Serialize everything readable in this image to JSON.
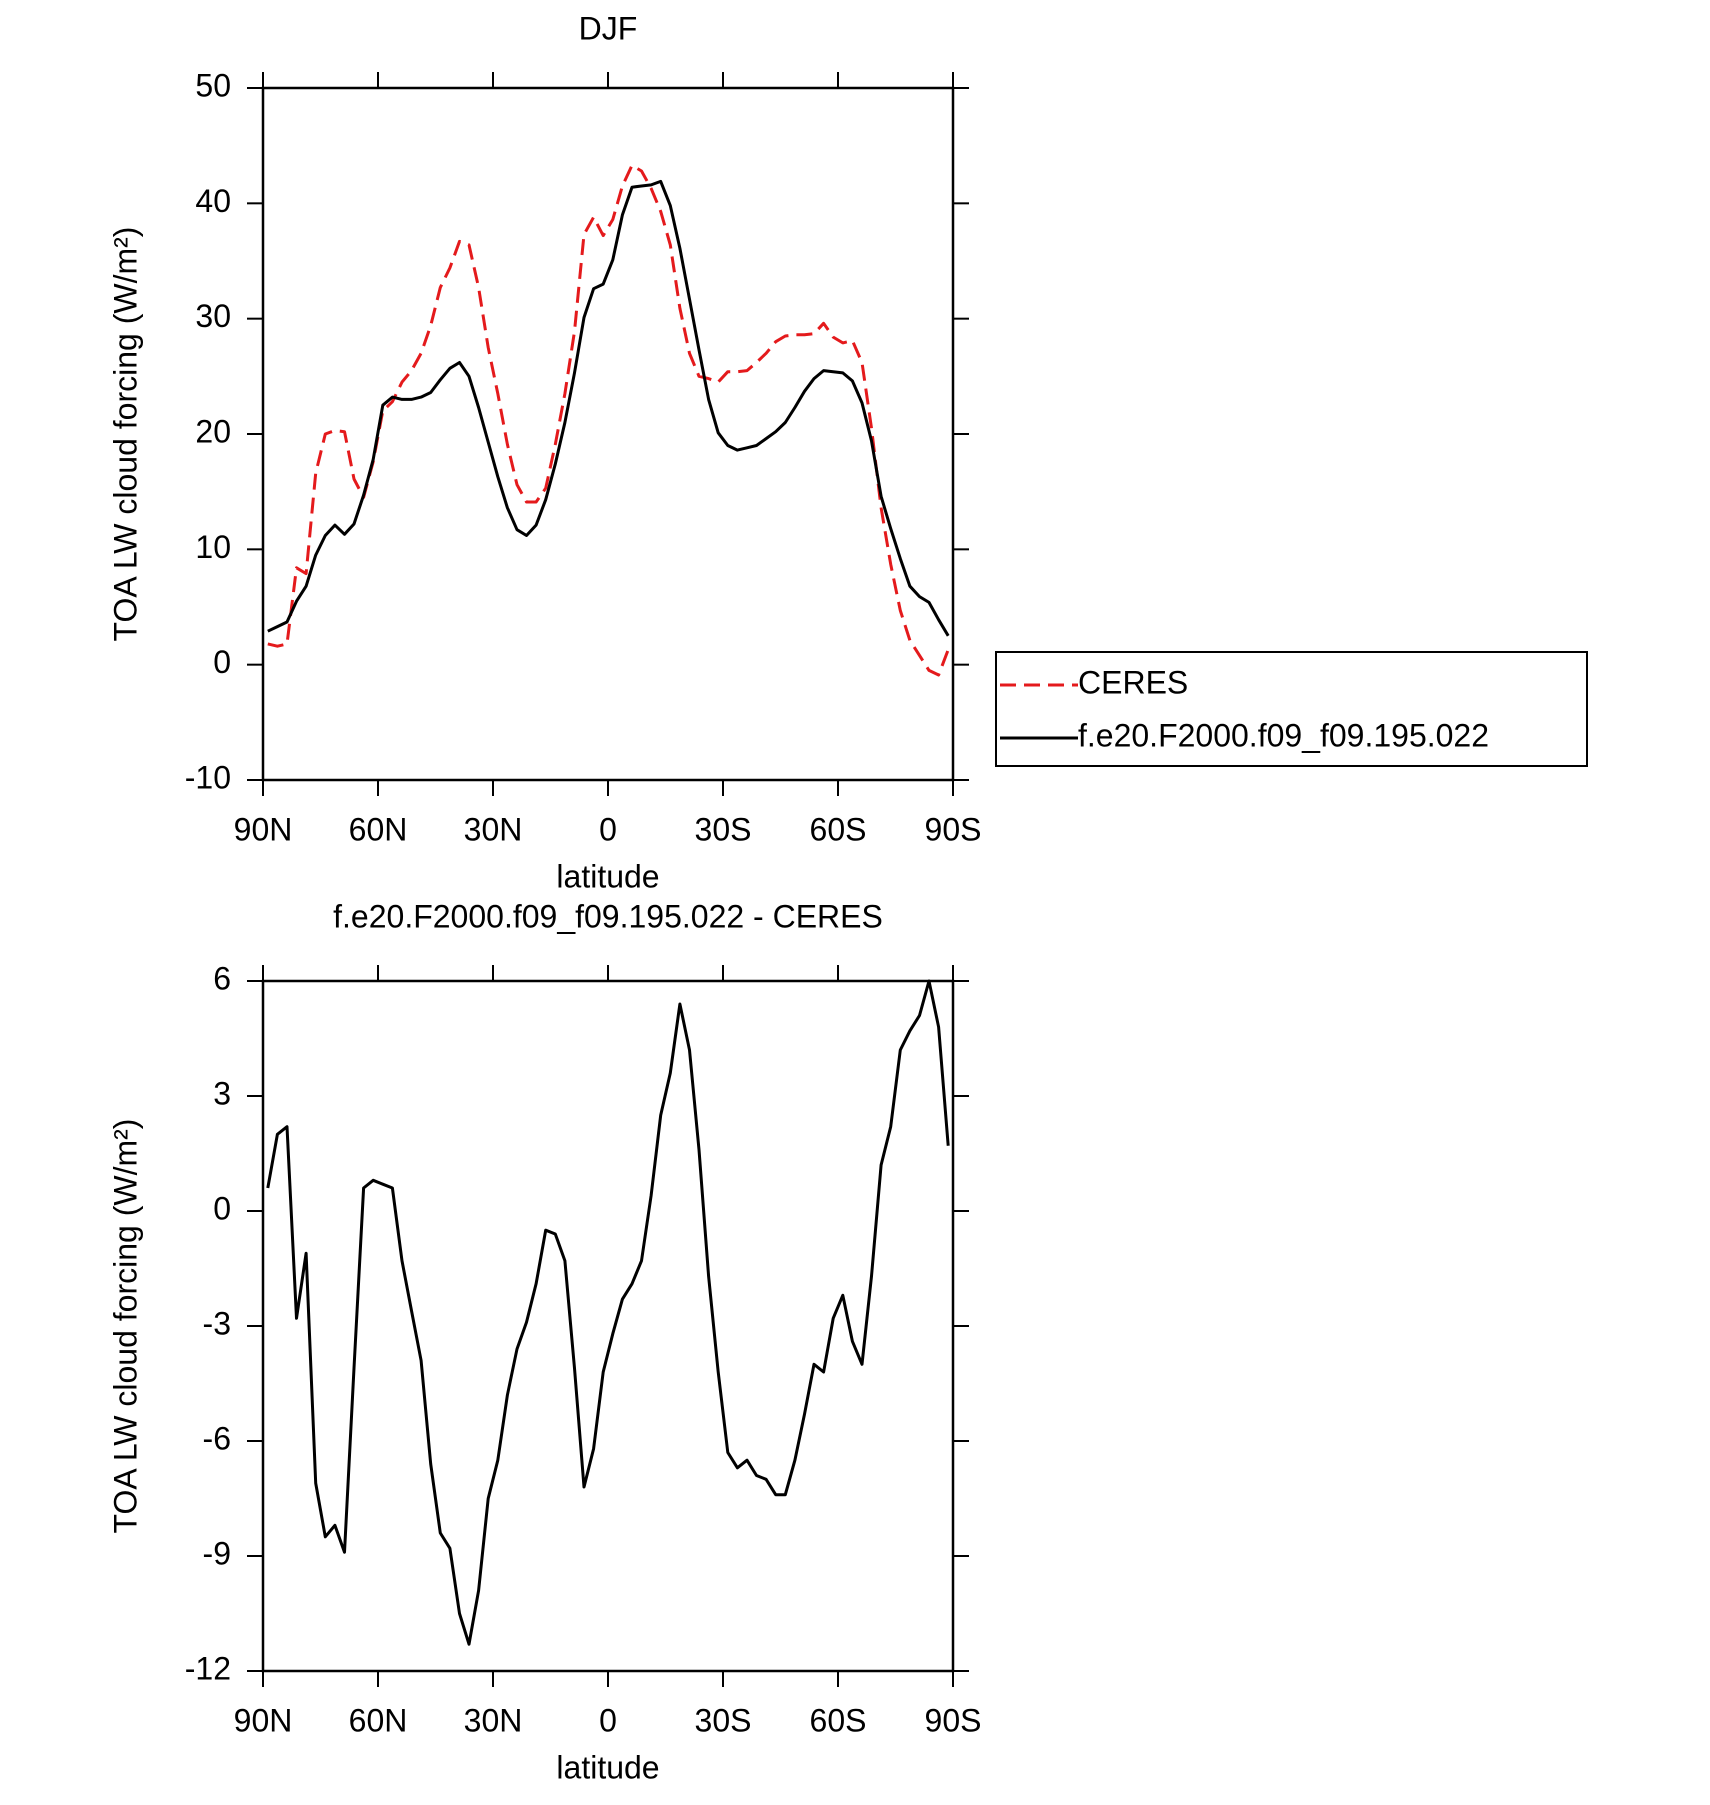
{
  "chart_data": [
    {
      "type": "line",
      "title": "DJF",
      "xlabel": "latitude",
      "ylabel": "TOA LW cloud forcing (W/m²)",
      "x": [
        88.75,
        86.25,
        83.75,
        81.25,
        78.75,
        76.25,
        73.75,
        71.25,
        68.75,
        66.25,
        63.75,
        61.25,
        58.75,
        56.25,
        53.75,
        51.25,
        48.75,
        46.25,
        43.75,
        41.25,
        38.75,
        36.25,
        33.75,
        31.25,
        28.75,
        26.25,
        23.75,
        21.25,
        18.75,
        16.25,
        13.75,
        11.25,
        8.75,
        6.25,
        3.75,
        1.25,
        -1.25,
        -3.75,
        -6.25,
        -8.75,
        -11.25,
        -13.75,
        -16.25,
        -18.75,
        -21.25,
        -23.75,
        -26.25,
        -28.75,
        -31.25,
        -33.75,
        -36.25,
        -38.75,
        -41.25,
        -43.75,
        -46.25,
        -48.75,
        -51.25,
        -53.75,
        -56.25,
        -58.75,
        -61.25,
        -63.75,
        -66.25,
        -68.75,
        -71.25,
        -73.75,
        -76.25,
        -78.75,
        -81.25,
        -83.75,
        -86.25,
        -88.75
      ],
      "xlim": [
        90,
        -90
      ],
      "xticks": [
        {
          "value": 90,
          "label": "90N"
        },
        {
          "value": 60,
          "label": "60N"
        },
        {
          "value": 30,
          "label": "30N"
        },
        0,
        {
          "value": -30,
          "label": "30S"
        },
        {
          "value": -60,
          "label": "60S"
        },
        {
          "value": -90,
          "label": "90S"
        }
      ],
      "ylim": [
        -10,
        50
      ],
      "yticks": [
        -10,
        0,
        10,
        20,
        30,
        40,
        50
      ],
      "legend": "right",
      "series": [
        {
          "name": "CERES",
          "color": "#e41a1c",
          "style": "dashed",
          "values": [
            1.8,
            1.6,
            1.8,
            8.4,
            7.9,
            16.6,
            20.0,
            20.3,
            20.2,
            16.1,
            14.5,
            17.6,
            22.0,
            22.8,
            24.5,
            25.5,
            27.0,
            29.4,
            32.7,
            34.4,
            36.7,
            36.4,
            32.7,
            27.5,
            23.5,
            19.1,
            15.6,
            14.1,
            14.1,
            15.3,
            19.1,
            23.5,
            28.9,
            37.3,
            38.8,
            37.2,
            38.6,
            41.5,
            43.3,
            42.8,
            41.3,
            39.3,
            36.4,
            30.9,
            27.0,
            25.0,
            24.8,
            24.5,
            25.4,
            25.4,
            25.5,
            26.2,
            27.0,
            28.0,
            28.5,
            28.6,
            28.6,
            28.7,
            29.6,
            28.4,
            27.9,
            28.1,
            26.2,
            20.5,
            13.6,
            8.7,
            4.7,
            2.1,
            0.8,
            -0.5,
            -0.9,
            1.3
          ]
        },
        {
          "name": "f.e20.F2000.f09_f09.195.022",
          "color": "#000000",
          "style": "solid",
          "values": [
            2.9,
            3.3,
            3.7,
            5.5,
            6.8,
            9.5,
            11.2,
            12.1,
            11.3,
            12.2,
            14.7,
            17.8,
            22.5,
            23.2,
            23.0,
            23.0,
            23.2,
            23.6,
            24.7,
            25.7,
            26.2,
            25.0,
            22.3,
            19.3,
            16.3,
            13.6,
            11.7,
            11.2,
            12.1,
            14.3,
            17.4,
            21.0,
            25.3,
            30.1,
            32.6,
            33.0,
            35.1,
            39.0,
            41.4,
            41.5,
            41.6,
            41.9,
            39.8,
            36.1,
            31.7,
            27.3,
            23.0,
            20.1,
            19.0,
            18.6,
            18.8,
            19.0,
            19.6,
            20.2,
            21.0,
            22.3,
            23.7,
            24.8,
            25.5,
            25.4,
            25.3,
            24.6,
            22.7,
            19.4,
            14.6,
            11.8,
            9.2,
            6.8,
            5.9,
            5.4,
            3.9,
            2.5
          ]
        }
      ]
    },
    {
      "type": "line",
      "title": "f.e20.F2000.f09_f09.195.022 - CERES",
      "xlabel": "latitude",
      "ylabel": "TOA LW cloud forcing (W/m²)",
      "x": [
        88.75,
        86.25,
        83.75,
        81.25,
        78.75,
        76.25,
        73.75,
        71.25,
        68.75,
        66.25,
        63.75,
        61.25,
        58.75,
        56.25,
        53.75,
        51.25,
        48.75,
        46.25,
        43.75,
        41.25,
        38.75,
        36.25,
        33.75,
        31.25,
        28.75,
        26.25,
        23.75,
        21.25,
        18.75,
        16.25,
        13.75,
        11.25,
        8.75,
        6.25,
        3.75,
        1.25,
        -1.25,
        -3.75,
        -6.25,
        -8.75,
        -11.25,
        -13.75,
        -16.25,
        -18.75,
        -21.25,
        -23.75,
        -26.25,
        -28.75,
        -31.25,
        -33.75,
        -36.25,
        -38.75,
        -41.25,
        -43.75,
        -46.25,
        -48.75,
        -51.25,
        -53.75,
        -56.25,
        -58.75,
        -61.25,
        -63.75,
        -66.25,
        -68.75,
        -71.25,
        -73.75,
        -76.25,
        -78.75,
        -81.25,
        -83.75,
        -86.25,
        -88.75
      ],
      "xlim": [
        90,
        -90
      ],
      "xticks": [
        {
          "value": 90,
          "label": "90N"
        },
        {
          "value": 60,
          "label": "60N"
        },
        {
          "value": 30,
          "label": "30N"
        },
        0,
        {
          "value": -30,
          "label": "30S"
        },
        {
          "value": -60,
          "label": "60S"
        },
        {
          "value": -90,
          "label": "90S"
        }
      ],
      "ylim": [
        -12,
        6
      ],
      "yticks": [
        -12,
        -9,
        -6,
        -3,
        0,
        3,
        6
      ],
      "color": "#000000",
      "values": [
        0.6,
        2.0,
        2.2,
        -2.8,
        -1.1,
        -7.1,
        -8.5,
        -8.2,
        -8.9,
        -4.1,
        0.6,
        0.8,
        0.7,
        0.6,
        -1.3,
        -2.6,
        -3.9,
        -6.6,
        -8.4,
        -8.8,
        -10.5,
        -11.3,
        -9.9,
        -7.5,
        -6.5,
        -4.8,
        -3.6,
        -2.9,
        -1.9,
        -0.5,
        -0.6,
        -1.3,
        -4.1,
        -7.2,
        -6.2,
        -4.2,
        -3.2,
        -2.3,
        -1.9,
        -1.3,
        0.4,
        2.5,
        3.6,
        5.4,
        4.2,
        1.6,
        -1.7,
        -4.2,
        -6.3,
        -6.7,
        -6.5,
        -6.9,
        -7.0,
        -7.4,
        -7.4,
        -6.5,
        -5.3,
        -4.0,
        -4.2,
        -2.8,
        -2.2,
        -3.4,
        -4.0,
        -1.7,
        1.2,
        2.2,
        4.2,
        4.7,
        5.1,
        6.0,
        4.8,
        1.7
      ]
    }
  ]
}
